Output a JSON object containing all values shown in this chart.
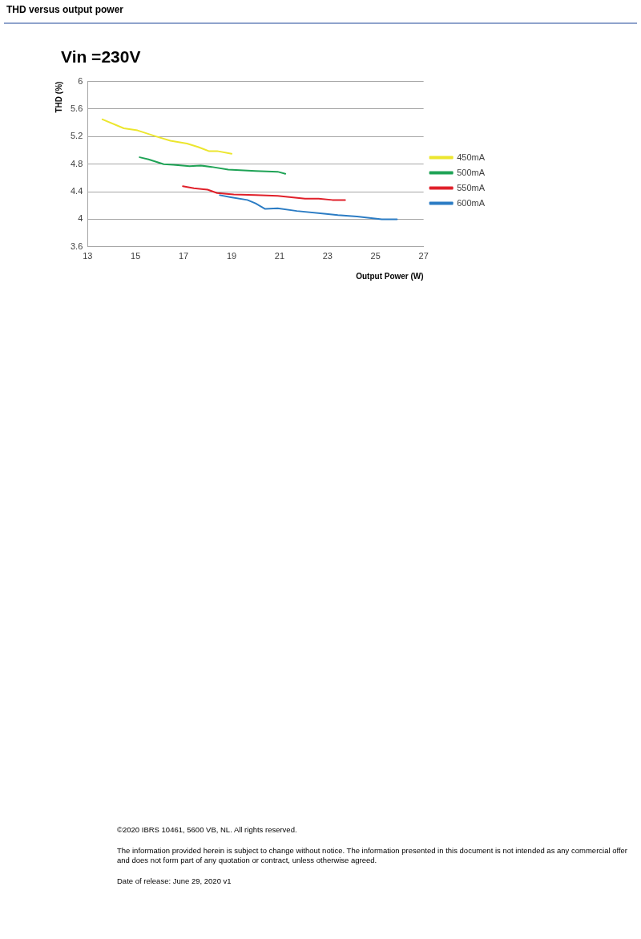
{
  "chart_data": {
    "type": "line",
    "title": "THD versus output power",
    "subtitle": "Vin =230V",
    "xlabel": "Output Power (W)",
    "ylabel": "THD (%)",
    "xlim": [
      13,
      27
    ],
    "xticks": [
      13,
      15,
      17,
      19,
      21,
      23,
      25,
      27
    ],
    "ylim": [
      3.6,
      6
    ],
    "yticks": [
      3.6,
      4,
      4.4,
      4.8,
      5.2,
      5.6,
      6
    ],
    "grid": "y",
    "legend": "right",
    "marker": "none",
    "line_style": "solid",
    "series": [
      {
        "name": "450mA",
        "color": "#ece62e",
        "x": [
          13.62,
          14.51,
          15.08,
          15.88,
          16.45,
          17.14,
          17.6,
          18.05,
          18.4,
          19.0
        ],
        "values": [
          5.45,
          5.32,
          5.29,
          5.2,
          5.14,
          5.1,
          5.05,
          4.99,
          4.99,
          4.95
        ]
      },
      {
        "name": "500mA",
        "color": "#1fa356",
        "x": [
          15.17,
          15.54,
          16.17,
          16.57,
          17.25,
          17.71,
          18.17,
          18.86,
          20.0,
          20.92,
          21.24
        ],
        "values": [
          4.9,
          4.87,
          4.8,
          4.79,
          4.77,
          4.78,
          4.76,
          4.72,
          4.7,
          4.69,
          4.66
        ]
      },
      {
        "name": "550mA",
        "color": "#e0202a",
        "x": [
          16.97,
          17.43,
          18.0,
          18.4,
          19.09,
          20.0,
          20.92,
          22.06,
          22.63,
          23.2,
          23.73
        ],
        "values": [
          4.48,
          4.45,
          4.43,
          4.38,
          4.36,
          4.35,
          4.34,
          4.3,
          4.3,
          4.28,
          4.28
        ]
      },
      {
        "name": "600mA",
        "color": "#2b7cc4",
        "x": [
          18.51,
          18.97,
          19.66,
          20.0,
          20.4,
          20.92,
          21.72,
          22.86,
          23.43,
          24.23,
          25.26,
          25.89
        ],
        "values": [
          4.35,
          4.32,
          4.28,
          4.23,
          4.15,
          4.16,
          4.12,
          4.08,
          4.06,
          4.04,
          4.0,
          4.0
        ]
      }
    ],
    "annotations": [
      "©2020 IBRS 10461, 5600 VB, NL. All rights reserved.",
      "The information provided herein is subject to change without notice. The information presented in this document is not intended as any commercial offer and does not form part of any quotation or contract, unless otherwise agreed.",
      "Date of release: June 29, 2020 v1"
    ]
  }
}
